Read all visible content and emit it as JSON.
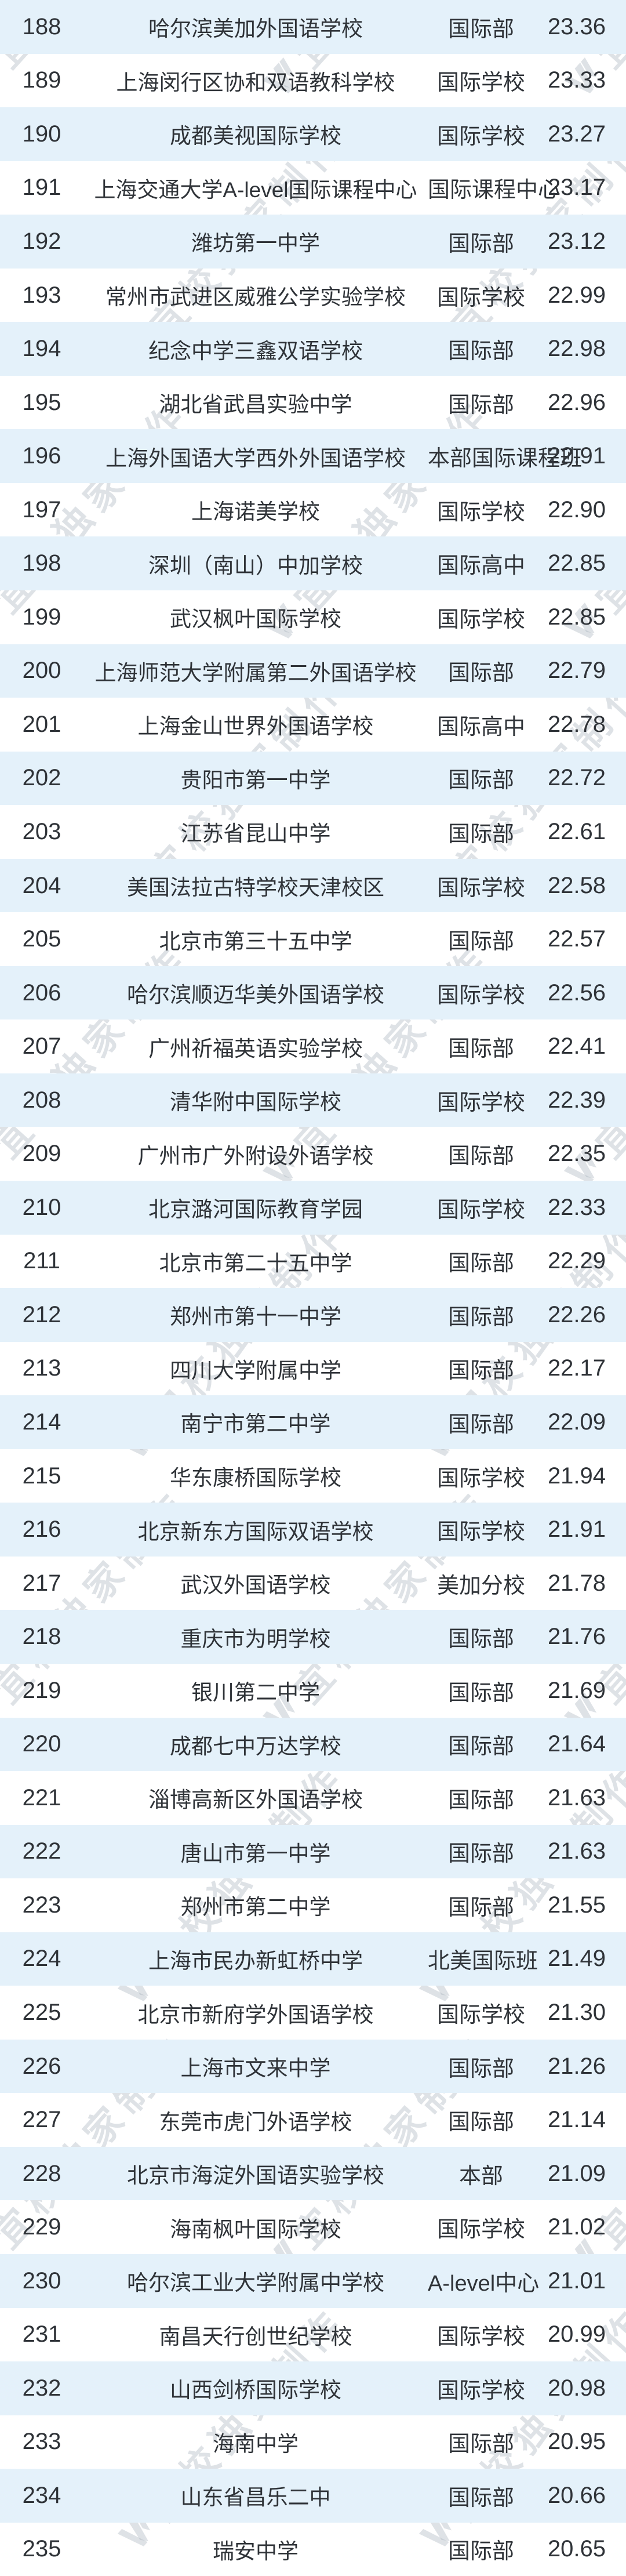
{
  "watermark": {
    "text": "宜校独家制作"
  },
  "colors": {
    "row_stripe": "#e4f1fa",
    "row_base": "#ffffff",
    "text": "#2f3338",
    "watermark": "#a8b4bd"
  },
  "table": {
    "rows": [
      {
        "rank": "188",
        "name": "哈尔滨美加外国语学校",
        "type": "国际部",
        "score": "23.36"
      },
      {
        "rank": "189",
        "name": "上海闵行区协和双语教科学校",
        "type": "国际学校",
        "score": "23.33"
      },
      {
        "rank": "190",
        "name": "成都美视国际学校",
        "type": "国际学校",
        "score": "23.27"
      },
      {
        "rank": "191",
        "name": "上海交通大学A-level国际课程中心",
        "type": "国际课程中心",
        "score": "23.17"
      },
      {
        "rank": "192",
        "name": "潍坊第一中学",
        "type": "国际部",
        "score": "23.12"
      },
      {
        "rank": "193",
        "name": "常州市武进区威雅公学实验学校",
        "type": "国际学校",
        "score": "22.99"
      },
      {
        "rank": "194",
        "name": "纪念中学三鑫双语学校",
        "type": "国际部",
        "score": "22.98"
      },
      {
        "rank": "195",
        "name": "湖北省武昌实验中学",
        "type": "国际部",
        "score": "22.96"
      },
      {
        "rank": "196",
        "name": "上海外国语大学西外外国语学校",
        "type": "本部国际课程班",
        "score": "22.91"
      },
      {
        "rank": "197",
        "name": "上海诺美学校",
        "type": "国际学校",
        "score": "22.90"
      },
      {
        "rank": "198",
        "name": "深圳（南山）中加学校",
        "type": "国际高中",
        "score": "22.85"
      },
      {
        "rank": "199",
        "name": "武汉枫叶国际学校",
        "type": "国际学校",
        "score": "22.85"
      },
      {
        "rank": "200",
        "name": "上海师范大学附属第二外国语学校",
        "type": "国际部",
        "score": "22.79"
      },
      {
        "rank": "201",
        "name": "上海金山世界外国语学校",
        "type": "国际高中",
        "score": "22.78"
      },
      {
        "rank": "202",
        "name": "贵阳市第一中学",
        "type": "国际部",
        "score": "22.72"
      },
      {
        "rank": "203",
        "name": "江苏省昆山中学",
        "type": "国际部",
        "score": "22.61"
      },
      {
        "rank": "204",
        "name": "美国法拉古特学校天津校区",
        "type": "国际学校",
        "score": "22.58"
      },
      {
        "rank": "205",
        "name": "北京市第三十五中学",
        "type": "国际部",
        "score": "22.57"
      },
      {
        "rank": "206",
        "name": "哈尔滨顺迈华美外国语学校",
        "type": "国际学校",
        "score": "22.56"
      },
      {
        "rank": "207",
        "name": "广州祈福英语实验学校",
        "type": "国际部",
        "score": "22.41"
      },
      {
        "rank": "208",
        "name": "清华附中国际学校",
        "type": "国际学校",
        "score": "22.39"
      },
      {
        "rank": "209",
        "name": "广州市广外附设外语学校",
        "type": "国际部",
        "score": "22.35"
      },
      {
        "rank": "210",
        "name": "北京潞河国际教育学园",
        "type": "国际学校",
        "score": "22.33"
      },
      {
        "rank": "211",
        "name": "北京市第二十五中学",
        "type": "国际部",
        "score": "22.29"
      },
      {
        "rank": "212",
        "name": "郑州市第十一中学",
        "type": "国际部",
        "score": "22.26"
      },
      {
        "rank": "213",
        "name": "四川大学附属中学",
        "type": "国际部",
        "score": "22.17"
      },
      {
        "rank": "214",
        "name": "南宁市第二中学",
        "type": "国际部",
        "score": "22.09"
      },
      {
        "rank": "215",
        "name": "华东康桥国际学校",
        "type": "国际学校",
        "score": "21.94"
      },
      {
        "rank": "216",
        "name": "北京新东方国际双语学校",
        "type": "国际学校",
        "score": "21.91"
      },
      {
        "rank": "217",
        "name": "武汉外国语学校",
        "type": "美加分校",
        "score": "21.78"
      },
      {
        "rank": "218",
        "name": "重庆市为明学校",
        "type": "国际部",
        "score": "21.76"
      },
      {
        "rank": "219",
        "name": "银川第二中学",
        "type": "国际部",
        "score": "21.69"
      },
      {
        "rank": "220",
        "name": "成都七中万达学校",
        "type": "国际部",
        "score": "21.64"
      },
      {
        "rank": "221",
        "name": "淄博高新区外国语学校",
        "type": "国际部",
        "score": "21.63"
      },
      {
        "rank": "222",
        "name": "唐山市第一中学",
        "type": "国际部",
        "score": "21.63"
      },
      {
        "rank": "223",
        "name": "郑州市第二中学",
        "type": "国际部",
        "score": "21.55"
      },
      {
        "rank": "224",
        "name": "上海市民办新虹桥中学",
        "type": "北美国际班",
        "score": "21.49"
      },
      {
        "rank": "225",
        "name": "北京市新府学外国语学校",
        "type": "国际学校",
        "score": "21.30"
      },
      {
        "rank": "226",
        "name": "上海市文来中学",
        "type": "国际部",
        "score": "21.26"
      },
      {
        "rank": "227",
        "name": "东莞市虎门外语学校",
        "type": "国际部",
        "score": "21.14"
      },
      {
        "rank": "228",
        "name": "北京市海淀外国语实验学校",
        "type": "本部",
        "score": "21.09"
      },
      {
        "rank": "229",
        "name": "海南枫叶国际学校",
        "type": "国际学校",
        "score": "21.02"
      },
      {
        "rank": "230",
        "name": "哈尔滨工业大学附属中学校",
        "type": "A-level中心",
        "score": "21.01"
      },
      {
        "rank": "231",
        "name": "南昌天行创世纪学校",
        "type": "国际学校",
        "score": "20.99"
      },
      {
        "rank": "232",
        "name": "山西剑桥国际学校",
        "type": "国际学校",
        "score": "20.98"
      },
      {
        "rank": "233",
        "name": "海南中学",
        "type": "国际部",
        "score": "20.95"
      },
      {
        "rank": "234",
        "name": "山东省昌乐二中",
        "type": "国际部",
        "score": "20.66"
      },
      {
        "rank": "235",
        "name": "瑞安中学",
        "type": "国际部",
        "score": "20.65"
      }
    ]
  }
}
